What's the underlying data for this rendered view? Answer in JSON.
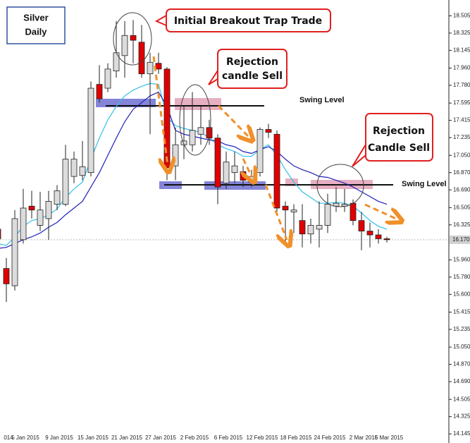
{
  "chart_data": {
    "type": "candlestick",
    "categories": [
      null,
      "014",
      null,
      "5 Jan 2015",
      null,
      null,
      null,
      "9 Jan 2015",
      null,
      null,
      null,
      "15 Jan 2015",
      null,
      null,
      null,
      "21 Jan 2015",
      null,
      null,
      null,
      "27 Jan 2015",
      null,
      null,
      null,
      "2 Feb 2015",
      null,
      null,
      null,
      "6 Feb 2015",
      null,
      null,
      null,
      "12 Feb 2015",
      null,
      null,
      null,
      "18 Feb 2015",
      null,
      null,
      null,
      "24 Feb 2015",
      null,
      null,
      null,
      "2 Mar 2015",
      null,
      null,
      "6 Mar 2015"
    ],
    "open": [
      16.28,
      15.87,
      15.69,
      16.17,
      16.52,
      16.32,
      16.39,
      16.54,
      16.54,
      16.83,
      16.84,
      16.87,
      17.79,
      17.75,
      17.93,
      18.09,
      18.3,
      18.23,
      17.9,
      18.01,
      17.95,
      16.94,
      17.16,
      17.16,
      17.27,
      17.34,
      17.23,
      16.76,
      16.87,
      16.88,
      16.77,
      16.87,
      17.32,
      17.27,
      16.52,
      16.46,
      16.37,
      16.23,
      16.28,
      16.32,
      16.52,
      16.52,
      16.55,
      16.37,
      16.26,
      16.22,
      16.18
    ],
    "high": [
      16.33,
      15.98,
      16.48,
      16.7,
      16.68,
      16.67,
      16.68,
      16.74,
      17.16,
      17.09,
      17.2,
      17.82,
      17.99,
      18.01,
      18.45,
      18.45,
      18.46,
      18.41,
      18.12,
      18.12,
      17.97,
      17.34,
      17.56,
      17.71,
      17.56,
      17.42,
      17.27,
      17.09,
      17.09,
      16.94,
      16.9,
      17.34,
      17.38,
      17.31,
      16.57,
      16.54,
      16.54,
      16.39,
      16.57,
      16.65,
      16.72,
      16.7,
      16.59,
      16.46,
      16.35,
      16.28,
      16.2
    ],
    "low": [
      16.15,
      15.52,
      15.64,
      16.13,
      16.39,
      16.26,
      16.17,
      16.48,
      16.52,
      16.76,
      16.79,
      16.83,
      17.6,
      17.71,
      17.86,
      17.86,
      18.01,
      17.86,
      17.27,
      17.9,
      16.79,
      16.79,
      17.01,
      17.09,
      17.16,
      17.16,
      16.54,
      16.7,
      16.76,
      16.72,
      16.72,
      16.83,
      17.23,
      16.46,
      16.13,
      16.24,
      16.09,
      16.13,
      16.09,
      16.24,
      16.46,
      16.46,
      16.32,
      16.06,
      16.09,
      16.13,
      16.14
    ],
    "close": [
      16.18,
      15.71,
      16.39,
      16.5,
      16.48,
      16.48,
      16.57,
      16.68,
      17.01,
      17.01,
      16.93,
      17.75,
      17.64,
      17.95,
      18.12,
      18.3,
      18.25,
      17.9,
      18.02,
      17.95,
      16.92,
      17.16,
      17.2,
      17.31,
      17.34,
      17.23,
      16.72,
      16.98,
      16.94,
      16.79,
      16.83,
      17.32,
      17.29,
      16.5,
      16.48,
      16.48,
      16.23,
      16.32,
      16.32,
      16.54,
      16.55,
      16.54,
      16.37,
      16.26,
      16.22,
      16.18,
      16.17
    ],
    "up_color": "#dcdcdc",
    "down_color": "#e00000",
    "lines": [
      {
        "color": "#33c0e8",
        "values": [
          16.13,
          16.11,
          16.2,
          16.31,
          16.37,
          16.39,
          16.43,
          16.49,
          16.61,
          16.7,
          16.77,
          17.01,
          17.23,
          17.42,
          17.56,
          17.67,
          17.73,
          17.77,
          17.8,
          17.79,
          17.45,
          17.36,
          17.33,
          17.31,
          17.29,
          17.23,
          17.16,
          17.12,
          17.09,
          17.04,
          17.04,
          17.11,
          17.16,
          17.05,
          16.9,
          16.77,
          16.67,
          16.61,
          16.55,
          16.55,
          16.56,
          16.55,
          16.52,
          16.45,
          16.37,
          16.31,
          16.28
        ]
      },
      {
        "color": "#1f1fb8",
        "values": [
          16.08,
          16.09,
          16.13,
          16.17,
          16.2,
          16.24,
          16.3,
          16.35,
          16.43,
          16.5,
          16.57,
          16.72,
          16.87,
          17.05,
          17.23,
          17.4,
          17.53,
          17.6,
          17.67,
          17.71,
          17.56,
          17.31,
          17.27,
          17.25,
          17.23,
          17.21,
          17.2,
          17.16,
          17.14,
          17.09,
          17.07,
          17.11,
          17.14,
          17.09,
          17.01,
          16.94,
          16.9,
          16.87,
          16.83,
          16.82,
          16.79,
          16.76,
          16.72,
          16.67,
          16.62,
          16.57,
          16.54
        ]
      }
    ],
    "ylim": [
      14.05,
      18.67
    ],
    "yticks": [
      18.505,
      18.325,
      18.145,
      {
        "value": 17.96,
        "label": "17.960"
      },
      {
        "value": 17.78,
        "label": "17.780"
      },
      17.595,
      17.415,
      17.235,
      {
        "value": 17.05,
        "label": "17.050"
      },
      {
        "value": 16.87,
        "label": "16.870"
      },
      {
        "value": 16.69,
        "label": "16.690"
      },
      16.505,
      16.325,
      {
        "value": 15.96,
        "label": "15.960"
      },
      {
        "value": 15.78,
        "label": "15.780"
      },
      {
        "value": 15.6,
        "label": "15.600"
      },
      15.415,
      15.235,
      {
        "value": 15.05,
        "label": "15.050"
      },
      {
        "value": 14.87,
        "label": "14.870"
      },
      {
        "value": 14.69,
        "label": "14.690"
      },
      14.505,
      14.325,
      14.145
    ],
    "last_price": {
      "value": 16.17,
      "label": "16.170"
    },
    "annotations": [
      "Silver",
      "Daily",
      "Initial Breakout Trap Trade",
      "Rejection",
      "candle Sell",
      "Swing Level",
      "Rejection",
      "Candle Sell",
      "Swing Level"
    ]
  }
}
